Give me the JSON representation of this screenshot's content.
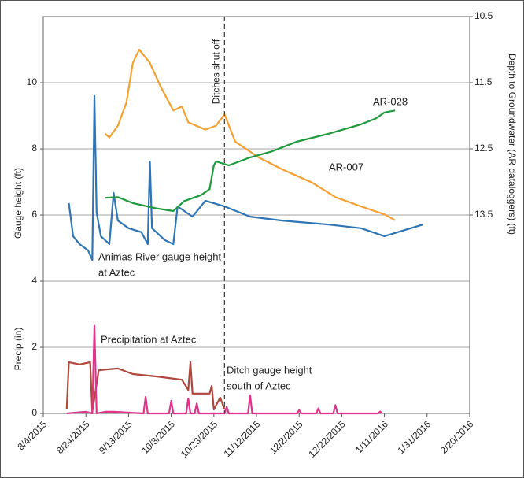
{
  "chart_data": {
    "type": "line",
    "ylabel": "Gauge height (ft)",
    "ylabel_lower": "Precip (in)",
    "y2label": "Depth to Groundwater (AR dataloggers) (ft)",
    "xlim": [
      "2015-08-04",
      "2016-02-20"
    ],
    "xticks": [
      {
        "value": "2015-08-04",
        "label": "8/4/2015"
      },
      {
        "value": "2015-08-24",
        "label": "8/24/2015"
      },
      {
        "value": "2015-09-13",
        "label": "9/13/2015"
      },
      {
        "value": "2015-10-03",
        "label": "10/3/2015"
      },
      {
        "value": "2015-10-23",
        "label": "10/23/2015"
      },
      {
        "value": "2015-11-12",
        "label": "11/12/2015"
      },
      {
        "value": "2015-12-02",
        "label": "12/2/2015"
      },
      {
        "value": "2015-12-22",
        "label": "12/22/2015"
      },
      {
        "value": "2016-01-11",
        "label": "1/11/2016"
      },
      {
        "value": "2016-01-31",
        "label": "1/31/2016"
      },
      {
        "value": "2016-02-20",
        "label": "2/20/2016"
      }
    ],
    "ylim": [
      0,
      12
    ],
    "yticks": [
      0,
      2,
      4,
      6,
      8,
      10
    ],
    "y2lim": [
      16.5,
      10.5
    ],
    "y2ticks": [
      10.5,
      11.5,
      12.5,
      13.5
    ],
    "grid": true,
    "vline": {
      "x": "2015-10-28",
      "label": "Ditches shut off"
    },
    "annotations": [
      {
        "text": [
          "Animas River gauge height",
          "at Aztec"
        ],
        "color": "#2e75b6"
      },
      {
        "text": [
          "AR-028"
        ],
        "color": "#1e9a3c"
      },
      {
        "text": [
          "AR-007"
        ],
        "color": "#f5a030"
      },
      {
        "text": [
          "Precipitation at Aztec"
        ],
        "color": "#e0338a"
      },
      {
        "text": [
          "Ditch gauge height",
          "south of Aztec"
        ],
        "color": "#d9502a"
      }
    ],
    "series": [
      {
        "name": "Animas River gauge height",
        "color": "#2e75b6",
        "axis": "y",
        "x": [
          "2015-08-16",
          "2015-08-18",
          "2015-08-21",
          "2015-08-25",
          "2015-08-27",
          "2015-08-28",
          "2015-08-29",
          "2015-08-31",
          "2015-09-04",
          "2015-09-06",
          "2015-09-08",
          "2015-09-13",
          "2015-09-19",
          "2015-09-22",
          "2015-09-23",
          "2015-09-24",
          "2015-09-30",
          "2015-10-04",
          "2015-10-06",
          "2015-10-13",
          "2015-10-19",
          "2015-10-28",
          "2015-11-09",
          "2015-11-24",
          "2015-12-16",
          "2015-12-31",
          "2016-01-11",
          "2016-01-29"
        ],
        "values": [
          6.36,
          5.36,
          5.12,
          4.93,
          4.64,
          9.6,
          6.07,
          5.36,
          5.12,
          6.67,
          5.83,
          5.6,
          5.48,
          5.12,
          7.62,
          5.6,
          5.24,
          5.12,
          6.26,
          5.95,
          6.43,
          6.26,
          5.95,
          5.83,
          5.71,
          5.6,
          5.36,
          5.71
        ]
      },
      {
        "name": "AR-007",
        "color": "#f5a030",
        "axis": "y2",
        "x": [
          "2015-09-02",
          "2015-09-04",
          "2015-09-08",
          "2015-09-12",
          "2015-09-15",
          "2015-09-18",
          "2015-09-23",
          "2015-09-28",
          "2015-10-04",
          "2015-10-08",
          "2015-10-11",
          "2015-10-19",
          "2015-10-24",
          "2015-10-28",
          "2015-11-02",
          "2015-11-13",
          "2015-11-24",
          "2015-12-08",
          "2015-12-19",
          "2015-12-31",
          "2016-01-11",
          "2016-01-16"
        ],
        "values": [
          12.27,
          12.33,
          12.15,
          11.8,
          11.2,
          11.0,
          11.2,
          11.56,
          11.92,
          11.86,
          12.1,
          12.21,
          12.15,
          11.98,
          12.39,
          12.63,
          12.81,
          13.01,
          13.23,
          13.37,
          13.49,
          13.58
        ]
      },
      {
        "name": "AR-028",
        "color": "#1e9a3c",
        "axis": "y2",
        "x": [
          "2015-09-02",
          "2015-09-08",
          "2015-09-15",
          "2015-09-26",
          "2015-10-04",
          "2015-10-09",
          "2015-10-17",
          "2015-10-21",
          "2015-10-23",
          "2015-10-24",
          "2015-10-30",
          "2015-11-09",
          "2015-11-19",
          "2015-12-01",
          "2015-12-16",
          "2015-12-31",
          "2016-01-07",
          "2016-01-11",
          "2016-01-16"
        ],
        "values": [
          13.24,
          13.23,
          13.32,
          13.4,
          13.44,
          13.29,
          13.2,
          13.11,
          12.75,
          12.69,
          12.75,
          12.63,
          12.54,
          12.39,
          12.27,
          12.13,
          12.04,
          11.95,
          11.92
        ]
      },
      {
        "name": "Ditch gauge height",
        "color": "#b0463c",
        "axis": "y",
        "x": [
          "2015-08-15",
          "2015-08-16",
          "2015-08-21",
          "2015-08-26",
          "2015-08-27",
          "2015-08-30",
          "2015-09-08",
          "2015-09-15",
          "2015-09-26",
          "2015-10-08",
          "2015-10-11",
          "2015-10-12",
          "2015-10-13",
          "2015-10-21",
          "2015-10-22",
          "2015-10-23",
          "2015-10-26",
          "2015-10-28"
        ],
        "values": [
          0.12,
          1.55,
          1.48,
          1.55,
          0.05,
          1.31,
          1.36,
          1.19,
          1.12,
          1.02,
          0.71,
          1.55,
          0.6,
          0.6,
          0.83,
          0.12,
          0.48,
          0.12
        ]
      },
      {
        "name": "Precipitation",
        "color": "#e0338a",
        "axis": "y",
        "x": [
          "2015-08-15",
          "2015-08-24",
          "2015-08-27",
          "2015-08-28",
          "2015-08-29",
          "2015-09-02",
          "2015-09-06",
          "2015-09-20",
          "2015-09-21",
          "2015-09-22",
          "2015-10-02",
          "2015-10-03",
          "2015-10-04",
          "2015-10-10",
          "2015-10-11",
          "2015-10-12",
          "2015-10-14",
          "2015-10-15",
          "2015-10-16",
          "2015-10-28",
          "2015-10-29",
          "2015-10-30",
          "2015-11-08",
          "2015-11-09",
          "2015-11-10",
          "2015-12-01",
          "2015-12-02",
          "2015-12-03",
          "2015-12-10",
          "2015-12-11",
          "2015-12-12",
          "2015-12-18",
          "2015-12-19",
          "2015-12-20",
          "2016-01-08",
          "2016-01-09",
          "2016-01-10"
        ],
        "values": [
          0,
          0.05,
          0,
          2.65,
          0,
          0.05,
          0.05,
          0,
          0.5,
          0,
          0,
          0.38,
          0,
          0,
          0.45,
          0,
          0,
          0.3,
          0,
          0,
          0.2,
          0,
          0,
          0.55,
          0,
          0,
          0.1,
          0,
          0,
          0.15,
          0,
          0,
          0.25,
          0,
          0,
          0.06,
          0
        ]
      }
    ]
  }
}
